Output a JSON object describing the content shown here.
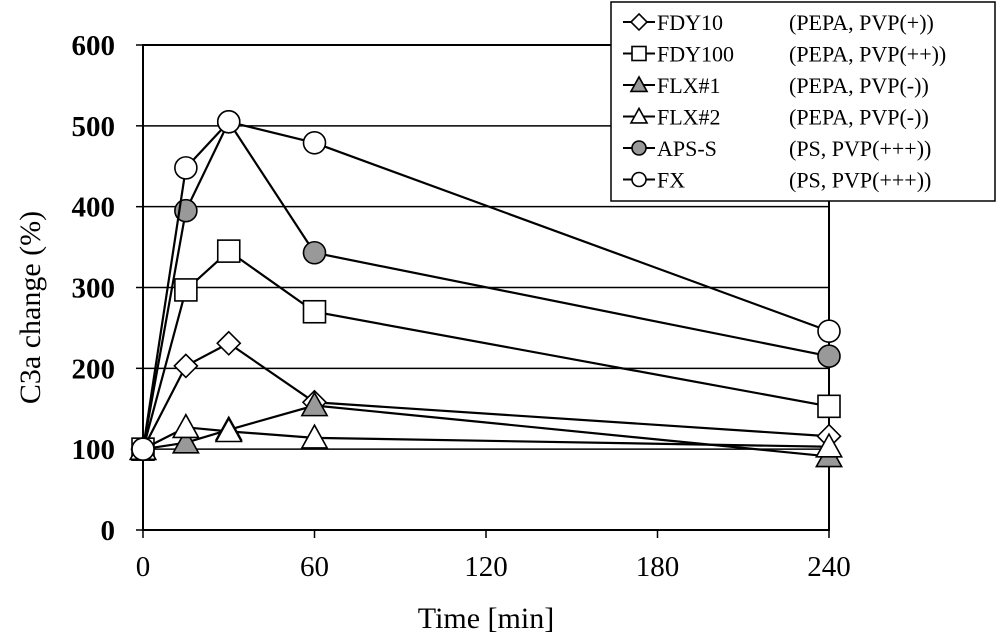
{
  "chart_data": {
    "type": "line",
    "xlabel": "Time   [min]",
    "ylabel": "C3a change   (%)",
    "xlim": [
      0,
      240
    ],
    "ylim": [
      0,
      600
    ],
    "xticks": [
      "0",
      "60",
      "120",
      "180",
      "240"
    ],
    "yticks": [
      "0",
      "100",
      "200",
      "300",
      "400",
      "500",
      "600"
    ],
    "grid": "horizontal",
    "legend_position": "top-right",
    "series": [
      {
        "name": "FDY10",
        "note": "(PEPA, PVP(+))",
        "marker": "diamond",
        "fill": "#ffffff",
        "x": [
          0,
          15,
          30,
          60,
          240
        ],
        "y": [
          100,
          203,
          231,
          158,
          116
        ]
      },
      {
        "name": "FDY100",
        "note": "(PEPA, PVP(++))",
        "marker": "square",
        "fill": "#ffffff",
        "x": [
          0,
          15,
          30,
          60,
          240
        ],
        "y": [
          100,
          297,
          345,
          270,
          153
        ]
      },
      {
        "name": "FLX#1",
        "note": "(PEPA, PVP(-))",
        "marker": "triangle",
        "fill": "#999999",
        "x": [
          0,
          15,
          30,
          60,
          240
        ],
        "y": [
          100,
          108,
          124,
          154,
          91
        ]
      },
      {
        "name": "FLX#2",
        "note": "(PEPA, PVP(-))",
        "marker": "triangle",
        "fill": "#ffffff",
        "x": [
          0,
          15,
          30,
          60,
          240
        ],
        "y": [
          100,
          127,
          122,
          114,
          103
        ]
      },
      {
        "name": "APS-S",
        "note": "(PS, PVP(+++))",
        "marker": "circle",
        "fill": "#999999",
        "x": [
          0,
          15,
          30,
          60,
          240
        ],
        "y": [
          100,
          395,
          505,
          343,
          215
        ]
      },
      {
        "name": "FX",
        "note": "(PS, PVP(+++))",
        "marker": "circle",
        "fill": "#ffffff",
        "x": [
          0,
          15,
          30,
          60,
          240
        ],
        "y": [
          100,
          448,
          505,
          479,
          246
        ]
      }
    ]
  }
}
